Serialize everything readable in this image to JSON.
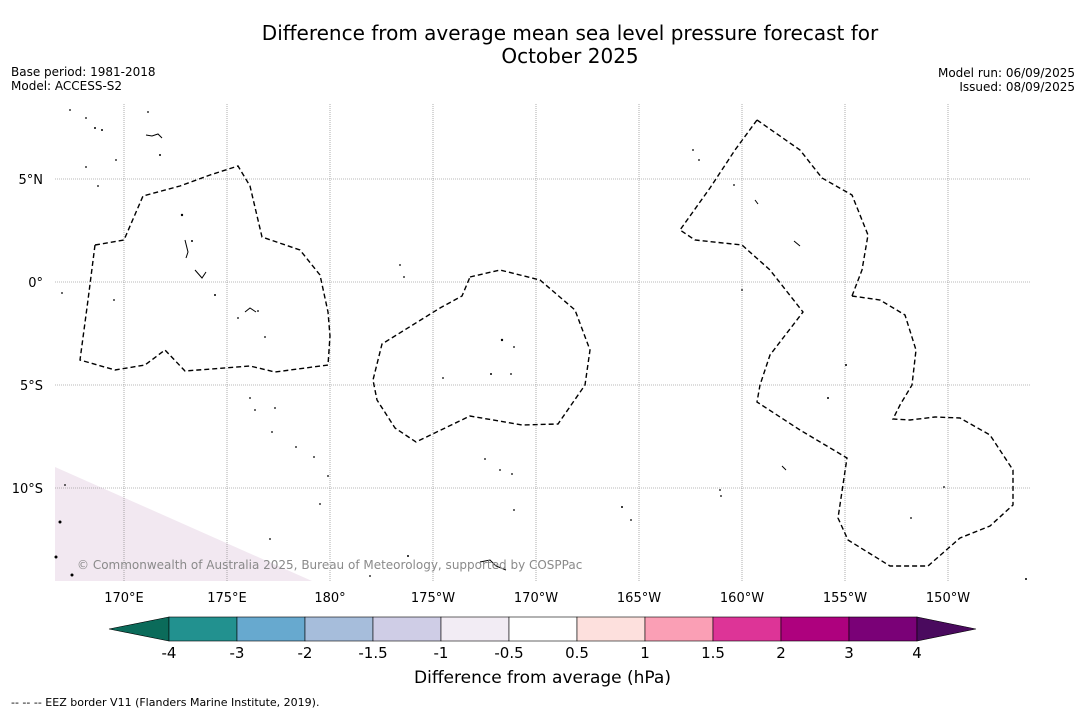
{
  "title_line1": "Difference from average mean sea level pressure forecast for",
  "title_line2": "October 2025",
  "base_period": "Base period: 1981-2018",
  "model": "Model: ACCESS-S2",
  "model_run": "Model run: 06/09/2025",
  "issued": "Issued: 08/09/2025",
  "copyright": "© Commonwealth of Australia 2025, Bureau of Meteorology, supported by COSPPac",
  "footnote": "-- -- -- EEZ border V11 (Flanders Marine Institute, 2019).",
  "map": {
    "lat_ticks": [
      "5°N",
      "0°",
      "5°S",
      "10°S"
    ],
    "lon_ticks": [
      "170°E",
      "175°E",
      "180°",
      "175°W",
      "170°W",
      "165°W",
      "160°W",
      "155°W",
      "150°W"
    ],
    "anomaly_region": {
      "category": "-1 to -0.5",
      "color": "#f2e8f1",
      "location": "bottom-left corner"
    }
  },
  "colorbar": {
    "label": "Difference from average (hPa)",
    "tick_labels": [
      "-4",
      "-3",
      "-2",
      "-1.5",
      "-1",
      "-0.5",
      "0.5",
      "1",
      "1.5",
      "2",
      "3",
      "4"
    ],
    "below_color": "#0b6b5a",
    "above_color": "#4a0a5e",
    "colors": [
      "#22918f",
      "#67a9cf",
      "#a6bddb",
      "#cfcde6",
      "#f2ecf4",
      "#ffffff",
      "#fde0dd",
      "#fa9fb5",
      "#dd3497",
      "#ae017e",
      "#7a0177"
    ]
  }
}
